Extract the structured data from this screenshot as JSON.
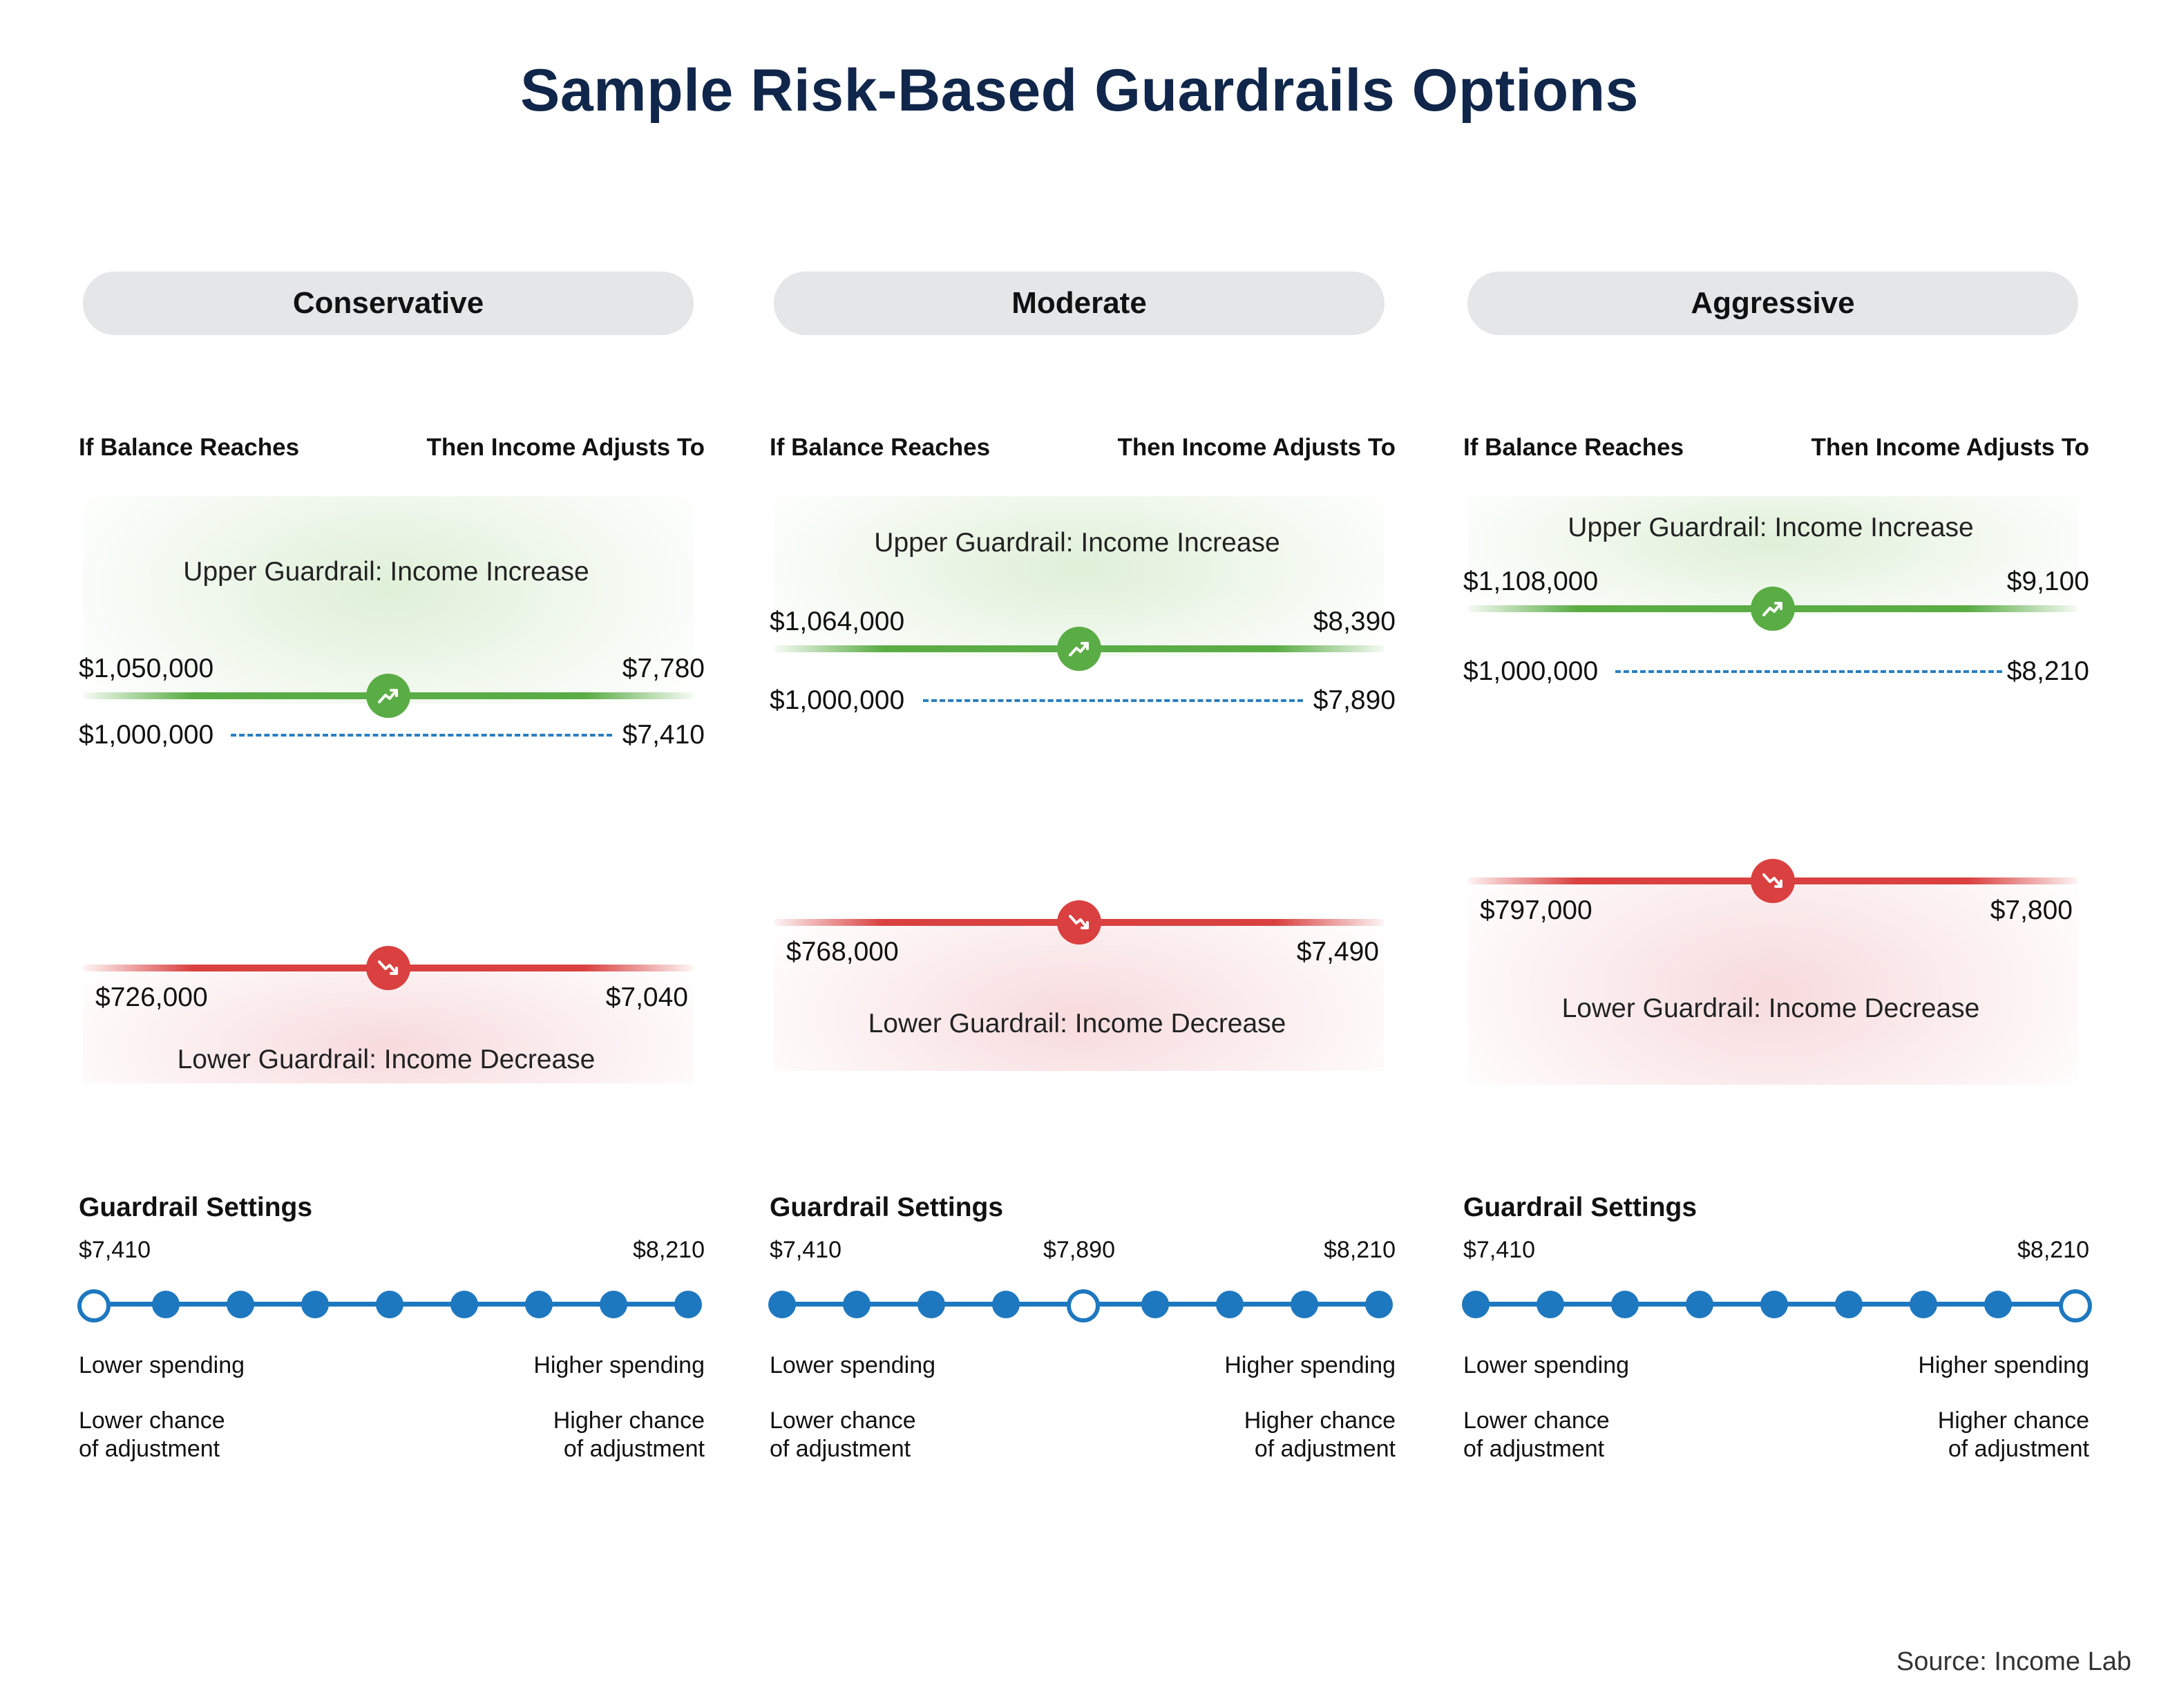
{
  "title": "Sample Risk-Based Guardrails Options",
  "columns": [
    {
      "name": "Conservative",
      "header_left": "If Balance Reaches",
      "header_right": "Then Income Adjusts To",
      "upper_label": "Upper Guardrail: Income Increase",
      "upper_balance": "$1,050,000",
      "upper_income": "$7,780",
      "current_balance": "$1,000,000",
      "current_income": "$7,410",
      "lower_balance": "$726,000",
      "lower_income": "$7,040",
      "lower_label": "Lower Guardrail: Income Decrease",
      "settings_title": "Guardrail Settings",
      "tick_left": "$7,410",
      "tick_mid": "",
      "tick_right": "$8,210",
      "selected_index": 0,
      "dot_count": 9,
      "low_spend": "Lower spending",
      "high_spend": "Higher spending",
      "low_chance_1": "Lower chance",
      "low_chance_2": "of adjustment",
      "high_chance_1": "Higher chance",
      "high_chance_2": "of adjustment"
    },
    {
      "name": "Moderate",
      "header_left": "If Balance Reaches",
      "header_right": "Then Income Adjusts To",
      "upper_label": "Upper Guardrail: Income Increase",
      "upper_balance": "$1,064,000",
      "upper_income": "$8,390",
      "current_balance": "$1,000,000",
      "current_income": "$7,890",
      "lower_balance": "$768,000",
      "lower_income": "$7,490",
      "lower_label": "Lower Guardrail: Income Decrease",
      "settings_title": "Guardrail Settings",
      "tick_left": "$7,410",
      "tick_mid": "$7,890",
      "tick_right": "$8,210",
      "selected_index": 4,
      "dot_count": 9,
      "low_spend": "Lower spending",
      "high_spend": "Higher spending",
      "low_chance_1": "Lower chance",
      "low_chance_2": "of adjustment",
      "high_chance_1": "Higher chance",
      "high_chance_2": "of adjustment"
    },
    {
      "name": "Aggressive",
      "header_left": "If Balance Reaches",
      "header_right": "Then Income Adjusts To",
      "upper_label": "Upper Guardrail: Income Increase",
      "upper_balance": "$1,108,000",
      "upper_income": "$9,100",
      "current_balance": "$1,000,000",
      "current_income": "$8,210",
      "lower_balance": "$797,000",
      "lower_income": "$7,800",
      "lower_label": "Lower Guardrail: Income Decrease",
      "settings_title": "Guardrail Settings",
      "tick_left": "$7,410",
      "tick_mid": "",
      "tick_right": "$8,210",
      "selected_index": 8,
      "dot_count": 9,
      "low_spend": "Lower spending",
      "high_spend": "Higher spending",
      "low_chance_1": "Lower chance",
      "low_chance_2": "of adjustment",
      "high_chance_1": "Higher chance",
      "high_chance_2": "of adjustment"
    }
  ],
  "source": "Source: Income Lab",
  "colors": {
    "title": "#10264a",
    "green": "#5aac45",
    "red": "#d9403f",
    "blue": "#1e78c0",
    "pill": "#e5e6e8"
  },
  "icons": {
    "upper": "trending-up-icon",
    "lower": "trending-down-icon"
  }
}
